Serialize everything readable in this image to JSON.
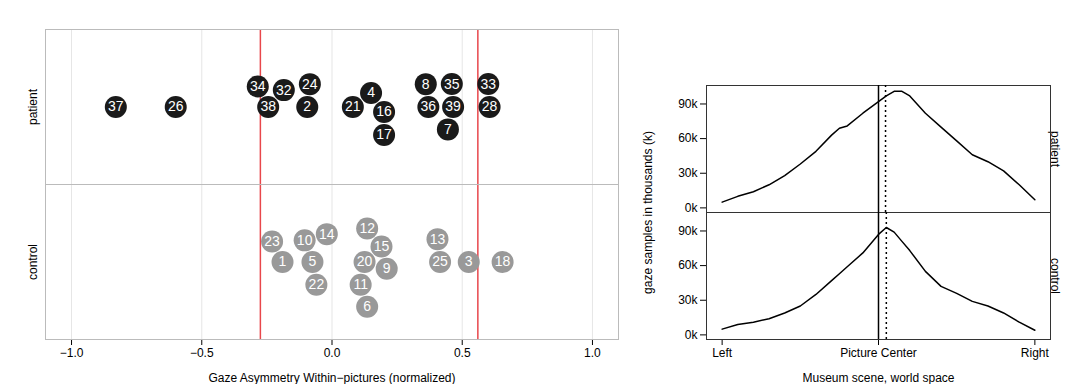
{
  "chart_data": [
    {
      "type": "scatter",
      "x_label": "Gaze Asymmetry Within−pictures (normalized)",
      "xlim": [
        -1.1,
        1.1
      ],
      "xticks": [
        {
          "value": -1.0,
          "label": "−1.0"
        },
        {
          "value": -0.5,
          "label": "−0.5"
        },
        {
          "value": 0.0,
          "label": "0.0"
        },
        {
          "value": 0.5,
          "label": "0.5"
        },
        {
          "value": 1.0,
          "label": "1.0"
        }
      ],
      "grid": true,
      "marker": "circle",
      "reference_lines": {
        "values": [
          -0.275,
          0.56
        ],
        "color": "#e8474b"
      },
      "series": [
        {
          "name": "patient",
          "color": "#1a1a1a",
          "labels": [
            "37",
            "26",
            "38",
            "34",
            "32",
            "2",
            "24",
            "21",
            "4",
            "16",
            "17",
            "36",
            "8",
            "39",
            "35",
            "7",
            "28",
            "33"
          ],
          "values": [
            -0.83,
            -0.6,
            -0.245,
            -0.285,
            -0.185,
            -0.095,
            -0.085,
            0.08,
            0.15,
            0.2,
            0.2,
            0.37,
            0.36,
            0.465,
            0.46,
            0.445,
            0.605,
            0.6
          ]
        },
        {
          "name": "control",
          "color": "#999999",
          "labels": [
            "1",
            "23",
            "5",
            "10",
            "22",
            "14",
            "20",
            "15",
            "11",
            "9",
            "12",
            "6",
            "25",
            "13",
            "3",
            "18"
          ],
          "values": [
            -0.19,
            -0.23,
            -0.075,
            -0.105,
            -0.06,
            -0.02,
            0.125,
            0.19,
            0.11,
            0.21,
            0.135,
            0.135,
            0.415,
            0.405,
            0.525,
            0.655
          ]
        }
      ]
    },
    {
      "type": "line",
      "x_label": "Museum scene, world space",
      "y_label": "gaze samples in thousands (k)",
      "xlim": [
        -1.1,
        1.1
      ],
      "xticks": [
        {
          "value": -1,
          "label": "Left"
        },
        {
          "value": 0,
          "label": "Picture Center"
        },
        {
          "value": 1,
          "label": "Right"
        }
      ],
      "ylim": [
        -4,
        106
      ],
      "yticks": [
        {
          "value": 0,
          "label": "0k"
        },
        {
          "value": 30,
          "label": "30k"
        },
        {
          "value": 60,
          "label": "60k"
        },
        {
          "value": 90,
          "label": "90k"
        }
      ],
      "grid": false,
      "center_line": 0,
      "x": [
        -1,
        -0.9,
        -0.8,
        -0.7,
        -0.6,
        -0.5,
        -0.4,
        -0.3,
        -0.25,
        -0.2,
        -0.1,
        0,
        0.05,
        0.1,
        0.15,
        0.2,
        0.3,
        0.4,
        0.5,
        0.6,
        0.7,
        0.8,
        0.9,
        1
      ],
      "series": [
        {
          "name": "patient",
          "color": "#000000",
          "line_style": "solid",
          "reference_x": 0.045,
          "values": [
            5,
            10,
            14,
            20,
            28,
            38,
            49,
            63,
            69,
            71,
            82,
            92,
            97,
            101,
            101,
            97,
            82,
            70,
            58,
            46,
            40,
            32,
            20,
            7
          ]
        },
        {
          "name": "control",
          "color": "#000000",
          "line_style": "solid",
          "reference_x": 0.05,
          "values": [
            5,
            9,
            11,
            14,
            19,
            25,
            35,
            47,
            53,
            59,
            71,
            87,
            93,
            89,
            81,
            73,
            55,
            42,
            36,
            29,
            25,
            19,
            11,
            4
          ]
        }
      ]
    }
  ]
}
